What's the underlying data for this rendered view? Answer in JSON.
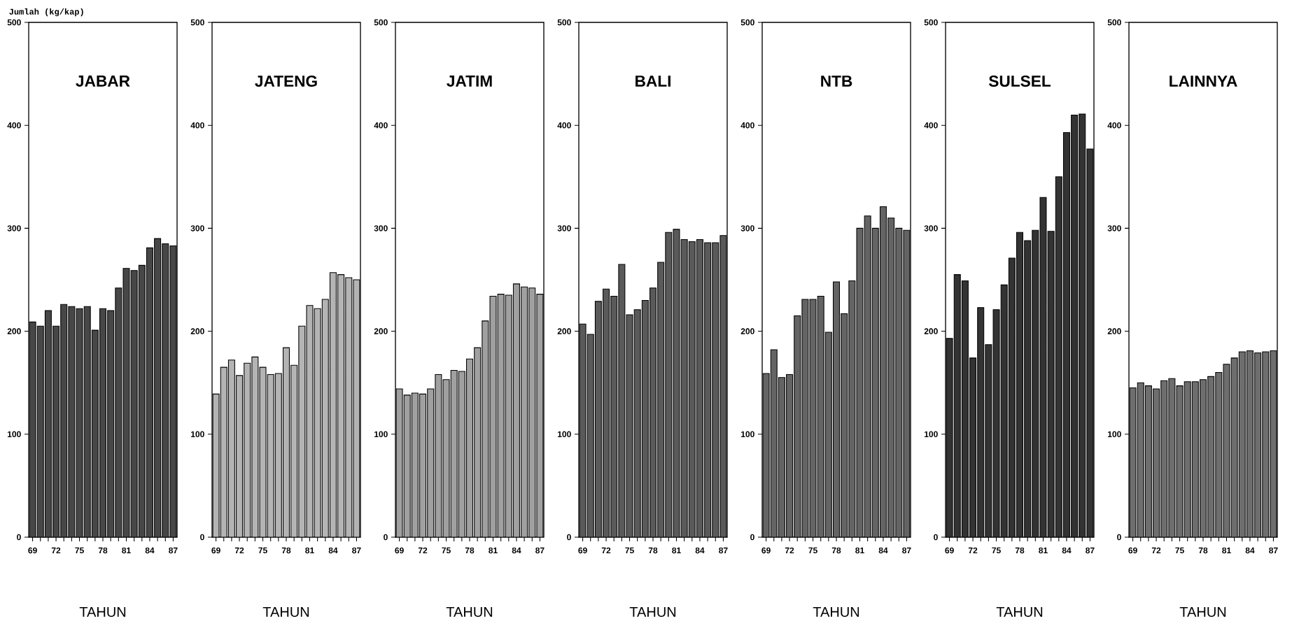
{
  "chart_data": [
    {
      "type": "bar",
      "title": "JABAR",
      "xlabel": "TAHUN",
      "ylabel": "Jumlah (kg/kap)",
      "color": "#474747",
      "x": [
        69,
        70,
        71,
        72,
        73,
        74,
        75,
        76,
        77,
        78,
        79,
        80,
        81,
        82,
        83,
        84,
        85,
        86,
        87
      ],
      "values": [
        209,
        205,
        220,
        205,
        226,
        224,
        222,
        224,
        201,
        222,
        220,
        242,
        261,
        259,
        264,
        281,
        290,
        285,
        283
      ],
      "xlim": [
        68.5,
        87.5
      ],
      "ylim": [
        0,
        500
      ],
      "yticks": [
        0,
        100,
        200,
        300,
        400,
        500
      ],
      "xticks": [
        69,
        {
          "value": 70,
          "label": null
        },
        {
          "value": 71,
          "label": null
        },
        72,
        {
          "value": 73,
          "label": null
        },
        {
          "value": 74,
          "label": null
        },
        75,
        {
          "value": 76,
          "label": null
        },
        {
          "value": 77,
          "label": null
        },
        78,
        {
          "value": 79,
          "label": null
        },
        {
          "value": 80,
          "label": null
        },
        81,
        {
          "value": 82,
          "label": null
        },
        {
          "value": 83,
          "label": null
        },
        84,
        {
          "value": 85,
          "label": null
        },
        {
          "value": 86,
          "label": null
        },
        87
      ]
    },
    {
      "type": "bar",
      "title": "JATENG",
      "xlabel": "TAHUN",
      "color": "#b4b4b4",
      "x": [
        69,
        70,
        71,
        72,
        73,
        74,
        75,
        76,
        77,
        78,
        79,
        80,
        81,
        82,
        83,
        84,
        85,
        86,
        87
      ],
      "values": [
        139,
        165,
        172,
        157,
        169,
        175,
        165,
        158,
        159,
        184,
        167,
        205,
        225,
        222,
        231,
        257,
        255,
        252,
        250
      ],
      "xlim": [
        68.5,
        87.5
      ],
      "ylim": [
        0,
        500
      ],
      "yticks": [
        0,
        100,
        200,
        300,
        400,
        500
      ],
      "xticks": [
        69,
        {
          "value": 70,
          "label": null
        },
        {
          "value": 71,
          "label": null
        },
        72,
        {
          "value": 73,
          "label": null
        },
        {
          "value": 74,
          "label": null
        },
        75,
        {
          "value": 76,
          "label": null
        },
        {
          "value": 77,
          "label": null
        },
        78,
        {
          "value": 79,
          "label": null
        },
        {
          "value": 80,
          "label": null
        },
        81,
        {
          "value": 82,
          "label": null
        },
        {
          "value": 83,
          "label": null
        },
        84,
        {
          "value": 85,
          "label": null
        },
        {
          "value": 86,
          "label": null
        },
        87
      ]
    },
    {
      "type": "bar",
      "title": "JATIM",
      "xlabel": "TAHUN",
      "color": "#a0a0a0",
      "x": [
        69,
        70,
        71,
        72,
        73,
        74,
        75,
        76,
        77,
        78,
        79,
        80,
        81,
        82,
        83,
        84,
        85,
        86,
        87
      ],
      "values": [
        144,
        138,
        140,
        139,
        144,
        158,
        153,
        162,
        161,
        173,
        184,
        210,
        234,
        236,
        235,
        246,
        243,
        242,
        236
      ],
      "xlim": [
        68.5,
        87.5
      ],
      "ylim": [
        0,
        500
      ],
      "yticks": [
        0,
        100,
        200,
        300,
        400,
        500
      ],
      "xticks": [
        69,
        {
          "value": 70,
          "label": null
        },
        {
          "value": 71,
          "label": null
        },
        72,
        {
          "value": 73,
          "label": null
        },
        {
          "value": 74,
          "label": null
        },
        75,
        {
          "value": 76,
          "label": null
        },
        {
          "value": 77,
          "label": null
        },
        78,
        {
          "value": 79,
          "label": null
        },
        {
          "value": 80,
          "label": null
        },
        81,
        {
          "value": 82,
          "label": null
        },
        {
          "value": 83,
          "label": null
        },
        84,
        {
          "value": 85,
          "label": null
        },
        {
          "value": 86,
          "label": null
        },
        87
      ]
    },
    {
      "type": "bar",
      "title": "BALI",
      "xlabel": "TAHUN",
      "color": "#5a5a5a",
      "x": [
        69,
        70,
        71,
        72,
        73,
        74,
        75,
        76,
        77,
        78,
        79,
        80,
        81,
        82,
        83,
        84,
        85,
        86,
        87
      ],
      "values": [
        207,
        197,
        229,
        241,
        234,
        265,
        216,
        221,
        230,
        242,
        267,
        296,
        299,
        289,
        287,
        289,
        286,
        286,
        293
      ],
      "xlim": [
        68.5,
        87.5
      ],
      "ylim": [
        0,
        500
      ],
      "yticks": [
        0,
        100,
        200,
        300,
        400,
        500
      ],
      "xticks": [
        69,
        {
          "value": 70,
          "label": null
        },
        {
          "value": 71,
          "label": null
        },
        72,
        {
          "value": 73,
          "label": null
        },
        {
          "value": 74,
          "label": null
        },
        75,
        {
          "value": 76,
          "label": null
        },
        {
          "value": 77,
          "label": null
        },
        78,
        {
          "value": 79,
          "label": null
        },
        {
          "value": 80,
          "label": null
        },
        81,
        {
          "value": 82,
          "label": null
        },
        {
          "value": 83,
          "label": null
        },
        84,
        {
          "value": 85,
          "label": null
        },
        {
          "value": 86,
          "label": null
        },
        87
      ]
    },
    {
      "type": "bar",
      "title": "NTB",
      "xlabel": "TAHUN",
      "color": "#646464",
      "x": [
        69,
        70,
        71,
        72,
        73,
        74,
        75,
        76,
        77,
        78,
        79,
        80,
        81,
        82,
        83,
        84,
        85,
        86,
        87
      ],
      "values": [
        159,
        182,
        155,
        158,
        215,
        231,
        231,
        234,
        199,
        248,
        217,
        249,
        300,
        312,
        300,
        321,
        310,
        300,
        298
      ],
      "xlim": [
        68.5,
        87.5
      ],
      "ylim": [
        0,
        500
      ],
      "yticks": [
        0,
        100,
        200,
        300,
        400,
        500
      ],
      "xticks": [
        69,
        {
          "value": 70,
          "label": null
        },
        {
          "value": 71,
          "label": null
        },
        72,
        {
          "value": 73,
          "label": null
        },
        {
          "value": 74,
          "label": null
        },
        75,
        {
          "value": 76,
          "label": null
        },
        {
          "value": 77,
          "label": null
        },
        78,
        {
          "value": 79,
          "label": null
        },
        {
          "value": 80,
          "label": null
        },
        81,
        {
          "value": 82,
          "label": null
        },
        {
          "value": 83,
          "label": null
        },
        84,
        {
          "value": 85,
          "label": null
        },
        {
          "value": 86,
          "label": null
        },
        87
      ]
    },
    {
      "type": "bar",
      "title": "SULSEL",
      "xlabel": "TAHUN",
      "color": "#333333",
      "x": [
        69,
        70,
        71,
        72,
        73,
        74,
        75,
        76,
        77,
        78,
        79,
        80,
        81,
        82,
        83,
        84,
        85,
        86,
        87
      ],
      "values": [
        193,
        255,
        249,
        174,
        223,
        187,
        221,
        245,
        271,
        296,
        288,
        298,
        330,
        297,
        350,
        393,
        410,
        411,
        377
      ],
      "xlim": [
        68.5,
        87.5
      ],
      "ylim": [
        0,
        500
      ],
      "yticks": [
        0,
        100,
        200,
        300,
        400,
        500
      ],
      "xticks": [
        69,
        {
          "value": 70,
          "label": null
        },
        {
          "value": 71,
          "label": null
        },
        72,
        {
          "value": 73,
          "label": null
        },
        {
          "value": 74,
          "label": null
        },
        75,
        {
          "value": 76,
          "label": null
        },
        {
          "value": 77,
          "label": null
        },
        78,
        {
          "value": 79,
          "label": null
        },
        {
          "value": 80,
          "label": null
        },
        81,
        {
          "value": 82,
          "label": null
        },
        {
          "value": 83,
          "label": null
        },
        84,
        {
          "value": 85,
          "label": null
        },
        {
          "value": 86,
          "label": null
        },
        87
      ]
    },
    {
      "type": "bar",
      "title": "LAINNYA",
      "xlabel": "TAHUN",
      "color": "#6e6e6e",
      "x": [
        69,
        70,
        71,
        72,
        73,
        74,
        75,
        76,
        77,
        78,
        79,
        80,
        81,
        82,
        83,
        84,
        85,
        86,
        87
      ],
      "values": [
        145,
        150,
        147,
        144,
        152,
        154,
        147,
        151,
        151,
        153,
        156,
        160,
        168,
        174,
        180,
        181,
        179,
        180,
        181
      ],
      "xlim": [
        68.5,
        87.5
      ],
      "ylim": [
        0,
        500
      ],
      "yticks": [
        0,
        100,
        200,
        300,
        400,
        500
      ],
      "xticks": [
        69,
        {
          "value": 70,
          "label": null
        },
        {
          "value": 71,
          "label": null
        },
        72,
        {
          "value": 73,
          "label": null
        },
        {
          "value": 74,
          "label": null
        },
        75,
        {
          "value": 76,
          "label": null
        },
        {
          "value": 77,
          "label": null
        },
        78,
        {
          "value": 79,
          "label": null
        },
        {
          "value": 80,
          "label": null
        },
        81,
        {
          "value": 82,
          "label": null
        },
        {
          "value": 83,
          "label": null
        },
        84,
        {
          "value": 85,
          "label": null
        },
        {
          "value": 86,
          "label": null
        },
        87
      ]
    }
  ]
}
